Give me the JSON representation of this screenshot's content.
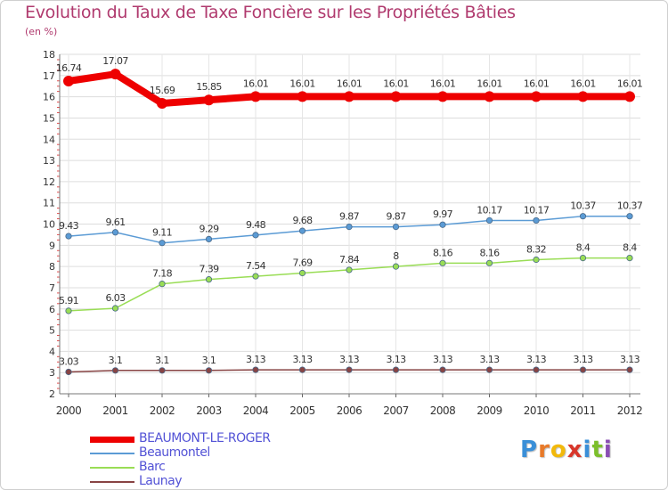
{
  "title": "Evolution du Taux de Taxe Foncière sur les Propriétés Bâties",
  "subtitle": "(en %)",
  "logo": {
    "letters": [
      "P",
      "r",
      "o",
      "x",
      "i",
      "t",
      "i"
    ],
    "colors": [
      "#3a8fd8",
      "#e87a2a",
      "#f2b90c",
      "#d8362a",
      "#3a8fd8",
      "#7cbf2b",
      "#8a4db3"
    ]
  },
  "chart_data": {
    "type": "line",
    "title": "Evolution du Taux de Taxe Foncière sur les Propriétés Bâties",
    "ylabel": "(en %)",
    "x": [
      "2000",
      "2001",
      "2002",
      "2003",
      "2004",
      "2005",
      "2006",
      "2007",
      "2008",
      "2009",
      "2010",
      "2011",
      "2012"
    ],
    "yticks": [
      "2",
      "3",
      "4",
      "5",
      "6",
      "7",
      "8",
      "9",
      "10",
      "11",
      "12",
      "13",
      "14",
      "15",
      "16",
      "17",
      "18"
    ],
    "ylim": [
      2,
      18
    ],
    "grid": true,
    "series": [
      {
        "name": "BEAUMONT-LE-ROGER",
        "color": "#ee0000",
        "values": [
          16.74,
          17.07,
          15.69,
          15.85,
          16.01,
          16.01,
          16.01,
          16.01,
          16.01,
          16.01,
          16.01,
          16.01,
          16.01
        ],
        "labels": [
          "16.74",
          "17.07",
          "15.69",
          "15.85",
          "16.01",
          "16.01",
          "16.01",
          "16.01",
          "16.01",
          "16.01",
          "16.01",
          "16.01",
          "16.01"
        ]
      },
      {
        "name": "Beaumontel",
        "color": "#5b9bd5",
        "values": [
          9.43,
          9.61,
          9.11,
          9.29,
          9.48,
          9.68,
          9.87,
          9.87,
          9.97,
          10.17,
          10.17,
          10.37,
          10.37
        ],
        "labels": [
          "9.43",
          "9.61",
          "9.11",
          "9.29",
          "9.48",
          "9.68",
          "9.87",
          "9.87",
          "9.97",
          "10.17",
          "10.17",
          "10.37",
          "10.37"
        ]
      },
      {
        "name": "Barc",
        "color": "#99dd55",
        "values": [
          5.91,
          6.03,
          7.18,
          7.39,
          7.54,
          7.69,
          7.84,
          8,
          8.16,
          8.16,
          8.32,
          8.4,
          8.4
        ],
        "labels": [
          "5.91",
          "6.03",
          "7.18",
          "7.39",
          "7.54",
          "7.69",
          "7.84",
          "8",
          "8.16",
          "8.16",
          "8.32",
          "8.4",
          "8.4"
        ]
      },
      {
        "name": "Launay",
        "color": "#884444",
        "values": [
          3.03,
          3.1,
          3.1,
          3.1,
          3.13,
          3.13,
          3.13,
          3.13,
          3.13,
          3.13,
          3.13,
          3.13,
          3.13
        ],
        "labels": [
          "3.03",
          "3.1",
          "3.1",
          "3.1",
          "3.13",
          "3.13",
          "3.13",
          "3.13",
          "3.13",
          "3.13",
          "3.13",
          "3.13",
          "3.13"
        ]
      }
    ]
  }
}
